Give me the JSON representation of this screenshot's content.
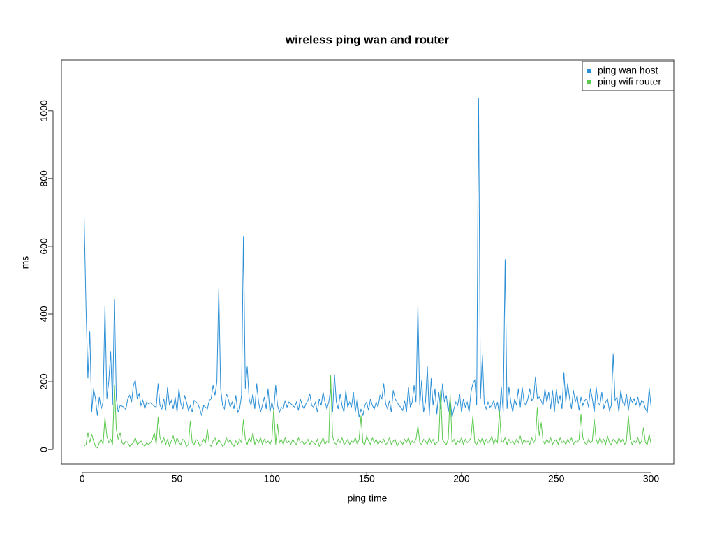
{
  "chart_data": {
    "type": "line",
    "title": "wireless ping wan and router",
    "xlabel": "ping time",
    "ylabel": "ms",
    "xlim": [
      -10.96,
      311.96
    ],
    "ylim": [
      -43,
      1150
    ],
    "xticks": [
      0,
      50,
      100,
      150,
      200,
      250,
      300
    ],
    "yticks": [
      0,
      200,
      400,
      600,
      800,
      1000
    ],
    "legend": "top-right",
    "grid": false,
    "x": [
      1,
      2,
      3,
      4,
      5,
      6,
      7,
      8,
      9,
      10,
      11,
      12,
      13,
      14,
      15,
      16,
      17,
      18,
      19,
      20,
      21,
      22,
      23,
      24,
      25,
      26,
      27,
      28,
      29,
      30,
      31,
      32,
      33,
      34,
      35,
      36,
      37,
      38,
      39,
      40,
      41,
      42,
      43,
      44,
      45,
      46,
      47,
      48,
      49,
      50,
      51,
      52,
      53,
      54,
      55,
      56,
      57,
      58,
      59,
      60,
      61,
      62,
      63,
      64,
      65,
      66,
      67,
      68,
      69,
      70,
      71,
      72,
      73,
      74,
      75,
      76,
      77,
      78,
      79,
      80,
      81,
      82,
      83,
      84,
      85,
      86,
      87,
      88,
      89,
      90,
      91,
      92,
      93,
      94,
      95,
      96,
      97,
      98,
      99,
      100,
      101,
      102,
      103,
      104,
      105,
      106,
      107,
      108,
      109,
      110,
      111,
      112,
      113,
      114,
      115,
      116,
      117,
      118,
      119,
      120,
      121,
      122,
      123,
      124,
      125,
      126,
      127,
      128,
      129,
      130,
      131,
      132,
      133,
      134,
      135,
      136,
      137,
      138,
      139,
      140,
      141,
      142,
      143,
      144,
      145,
      146,
      147,
      148,
      149,
      150,
      151,
      152,
      153,
      154,
      155,
      156,
      157,
      158,
      159,
      160,
      161,
      162,
      163,
      164,
      165,
      166,
      167,
      168,
      169,
      170,
      171,
      172,
      173,
      174,
      175,
      176,
      177,
      178,
      179,
      180,
      181,
      182,
      183,
      184,
      185,
      186,
      187,
      188,
      189,
      190,
      191,
      192,
      193,
      194,
      195,
      196,
      197,
      198,
      199,
      200,
      201,
      202,
      203,
      204,
      205,
      206,
      207,
      208,
      209,
      210,
      211,
      212,
      213,
      214,
      215,
      216,
      217,
      218,
      219,
      220,
      221,
      222,
      223,
      224,
      225,
      226,
      227,
      228,
      229,
      230,
      231,
      232,
      233,
      234,
      235,
      236,
      237,
      238,
      239,
      240,
      241,
      242,
      243,
      244,
      245,
      246,
      247,
      248,
      249,
      250,
      251,
      252,
      253,
      254,
      255,
      256,
      257,
      258,
      259,
      260,
      261,
      262,
      263,
      264,
      265,
      266,
      267,
      268,
      269,
      270,
      271,
      272,
      273,
      274,
      275,
      276,
      277,
      278,
      279,
      280,
      281,
      282,
      283,
      284,
      285,
      286,
      287,
      288,
      289,
      290,
      291,
      292,
      293,
      294,
      295,
      296,
      297,
      298,
      299,
      300
    ],
    "series": [
      {
        "name": "ping wan host",
        "color": "#2b8fd6",
        "values": [
          690,
          420,
          210,
          350,
          110,
          180,
          150,
          100,
          155,
          120,
          140,
          425,
          150,
          200,
          290,
          130,
          443,
          150,
          110,
          130,
          128,
          125,
          118,
          150,
          160,
          140,
          190,
          205,
          150,
          165,
          130,
          145,
          120,
          140,
          135,
          138,
          132,
          128,
          125,
          195,
          130,
          120,
          150,
          115,
          185,
          130,
          145,
          120,
          155,
          110,
          180,
          135,
          120,
          160,
          140,
          115,
          130,
          110,
          145,
          140,
          135,
          120,
          100,
          130,
          125,
          120,
          145,
          150,
          190,
          160,
          200,
          475,
          180,
          130,
          120,
          165,
          150,
          125,
          140,
          120,
          160,
          110,
          120,
          160,
          630,
          180,
          245,
          150,
          130,
          165,
          120,
          195,
          140,
          110,
          130,
          155,
          120,
          180,
          110,
          140,
          115,
          190,
          130,
          110,
          125,
          120,
          145,
          125,
          140,
          135,
          130,
          125,
          140,
          115,
          150,
          130,
          120,
          135,
          145,
          165,
          130,
          125,
          140,
          110,
          150,
          130,
          170,
          140,
          120,
          140,
          180,
          110,
          222,
          140,
          120,
          165,
          130,
          110,
          175,
          125,
          140,
          125,
          170,
          110,
          150,
          95,
          120,
          100,
          130,
          140,
          115,
          150,
          130,
          120,
          140,
          125,
          160,
          150,
          195,
          135,
          120,
          145,
          110,
          175,
          150,
          140,
          130,
          125,
          115,
          145,
          110,
          185,
          125,
          140,
          190,
          140,
          425,
          130,
          205,
          110,
          140,
          245,
          100,
          210,
          130,
          180,
          105,
          170,
          120,
          195,
          140,
          160,
          110,
          150,
          95,
          120,
          140,
          130,
          165,
          110,
          150,
          125,
          140,
          110,
          170,
          195,
          205,
          130,
          1038,
          150,
          280,
          135,
          120,
          140,
          125,
          130,
          145,
          120,
          140,
          100,
          185,
          110,
          562,
          120,
          185,
          140,
          110,
          150,
          130,
          180,
          125,
          185,
          140,
          130,
          150,
          180,
          145,
          150,
          215,
          150,
          155,
          145,
          130,
          180,
          140,
          170,
          120,
          175,
          110,
          180,
          135,
          160,
          120,
          228,
          140,
          195,
          150,
          120,
          175,
          140,
          160,
          115,
          155,
          130,
          145,
          150,
          125,
          180,
          150,
          110,
          185,
          140,
          130,
          170,
          120,
          140,
          150,
          115,
          130,
          283,
          145,
          155,
          110,
          175,
          140,
          130,
          165,
          115,
          155,
          140,
          150,
          130,
          155,
          125,
          145,
          140,
          120,
          110,
          182,
          125
        ]
      },
      {
        "name": "ping wifi router",
        "color": "#5cc94f",
        "values": [
          10,
          15,
          50,
          20,
          45,
          25,
          10,
          5,
          20,
          30,
          15,
          95,
          40,
          20,
          30,
          15,
          190,
          60,
          30,
          50,
          20,
          15,
          25,
          20,
          10,
          15,
          20,
          35,
          15,
          20,
          25,
          15,
          10,
          20,
          15,
          20,
          30,
          50,
          15,
          95,
          35,
          20,
          35,
          15,
          30,
          10,
          25,
          40,
          15,
          35,
          20,
          15,
          30,
          25,
          10,
          15,
          85,
          20,
          15,
          30,
          25,
          10,
          15,
          30,
          20,
          60,
          15,
          10,
          25,
          35,
          15,
          30,
          20,
          10,
          15,
          35,
          20,
          30,
          15,
          10,
          25,
          15,
          30,
          20,
          88,
          30,
          15,
          35,
          20,
          50,
          15,
          30,
          20,
          35,
          15,
          30,
          20,
          25,
          15,
          30,
          120,
          15,
          75,
          20,
          30,
          15,
          35,
          20,
          25,
          15,
          30,
          20,
          15,
          35,
          20,
          25,
          15,
          20,
          30,
          15,
          25,
          20,
          15,
          30,
          10,
          20,
          35,
          15,
          25,
          20,
          220,
          40,
          20,
          15,
          30,
          20,
          35,
          15,
          20,
          30,
          15,
          25,
          20,
          35,
          15,
          30,
          100,
          20,
          15,
          40,
          25,
          15,
          35,
          20,
          30,
          15,
          25,
          20,
          30,
          15,
          20,
          35,
          15,
          25,
          30,
          10,
          20,
          25,
          15,
          30,
          20,
          35,
          15,
          25,
          20,
          30,
          70,
          20,
          15,
          30,
          25,
          15,
          35,
          20,
          30,
          15,
          20,
          25,
          175,
          30,
          20,
          15,
          30,
          165,
          20,
          30,
          15,
          25,
          20,
          35,
          15,
          30,
          20,
          25,
          35,
          100,
          20,
          15,
          30,
          20,
          35,
          15,
          30,
          20,
          25,
          40,
          15,
          30,
          20,
          115,
          25,
          20,
          35,
          15,
          30,
          20,
          25,
          15,
          30,
          20,
          40,
          15,
          30,
          20,
          25,
          15,
          35,
          20,
          30,
          125,
          40,
          80,
          25,
          15,
          30,
          20,
          35,
          15,
          25,
          30,
          15,
          35,
          20,
          25,
          15,
          30,
          20,
          35,
          15,
          25,
          20,
          30,
          105,
          35,
          20,
          15,
          30,
          20,
          25,
          90,
          30,
          15,
          35,
          20,
          30,
          15,
          40,
          20,
          15,
          30,
          25,
          15,
          35,
          20,
          30,
          15,
          25,
          100,
          30,
          15,
          25,
          20,
          35,
          15,
          25,
          65,
          20,
          15,
          45,
          15
        ]
      }
    ]
  }
}
